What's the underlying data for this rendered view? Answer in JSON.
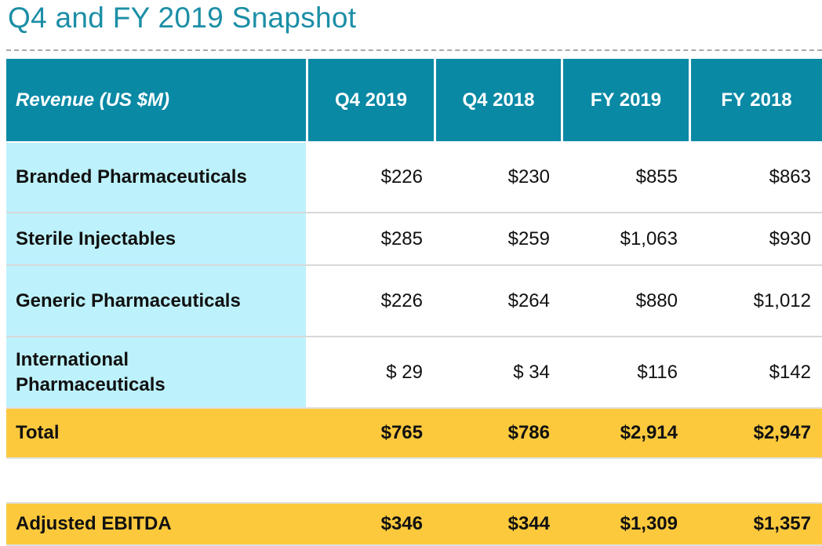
{
  "title": "Q4 and FY 2019 Snapshot",
  "table": {
    "headers": [
      "Revenue  (US $M)",
      "Q4 2019",
      "Q4 2018",
      "FY 2019",
      "FY 2018"
    ],
    "rows": [
      {
        "label": "Branded Pharmaceuticals",
        "values": [
          "$226",
          "$230",
          "$855",
          "$863"
        ]
      },
      {
        "label": "Sterile Injectables",
        "values": [
          "$285",
          "$259",
          "$1,063",
          "$930"
        ]
      },
      {
        "label": "Generic Pharmaceuticals",
        "values": [
          "$226",
          "$264",
          "$880",
          "$1,012"
        ]
      },
      {
        "label": "International Pharmaceuticals",
        "values": [
          "$ 29",
          "$ 34",
          "$116",
          "$142"
        ]
      }
    ],
    "total": {
      "label": "Total",
      "values": [
        "$765",
        "$786",
        "$2,914",
        "$2,947"
      ]
    },
    "ebitda": {
      "label": "Adjusted EBITDA",
      "values": [
        "$346",
        "$344",
        "$1,309",
        "$1,357"
      ]
    }
  },
  "colors": {
    "header": "#0a89a5",
    "label_column": "#bdf2fc",
    "highlight": "#fcc93d",
    "title": "#1b8ea6"
  }
}
